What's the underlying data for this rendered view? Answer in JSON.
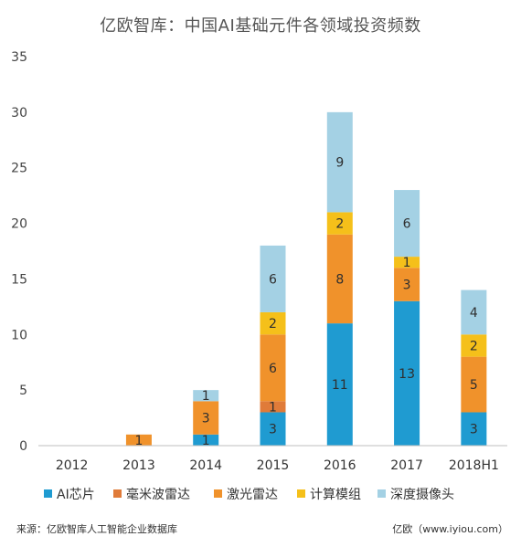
{
  "chart_data": {
    "type": "bar",
    "stacked": true,
    "title": "亿欧智库：中国AI基础元件各领域投资频数",
    "categories": [
      "2012",
      "2013",
      "2014",
      "2015",
      "2016",
      "2017",
      "2018H1"
    ],
    "series": [
      {
        "name": "AI芯片",
        "color": "#1f9bd1",
        "values": [
          0,
          0,
          1,
          3,
          11,
          13,
          3
        ]
      },
      {
        "name": "毫米波雷达",
        "color": "#e07b39",
        "values": [
          0,
          0,
          0,
          1,
          0,
          0,
          0
        ]
      },
      {
        "name": "激光雷达",
        "color": "#f0922b",
        "values": [
          0,
          1,
          3,
          6,
          8,
          3,
          5
        ]
      },
      {
        "name": "计算模组",
        "color": "#f5c01a",
        "values": [
          0,
          0,
          0,
          2,
          2,
          1,
          2
        ]
      },
      {
        "name": "深度摄像头",
        "color": "#a4d1e4",
        "values": [
          0,
          0,
          1,
          6,
          9,
          6,
          4
        ]
      }
    ],
    "ylim": [
      0,
      35
    ],
    "yticks": [
      0,
      5,
      10,
      15,
      20,
      25,
      30,
      35
    ],
    "grid": false,
    "legend_position": "bottom"
  },
  "footer": {
    "source": "来源：亿欧智库人工智能企业数据库",
    "site": "亿欧（www.iyiou.com）"
  }
}
